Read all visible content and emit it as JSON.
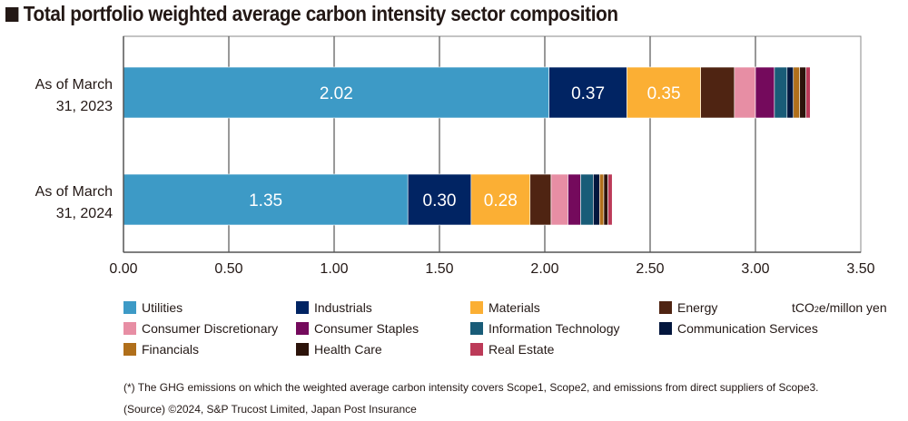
{
  "chart_data": {
    "type": "bar",
    "orientation": "horizontal",
    "stacked": true,
    "title": "Total portfolio weighted average carbon intensity sector composition",
    "xlabel": "",
    "ylabel": "",
    "unit": "tCO2e/millon yen",
    "xlim": [
      0,
      3.5
    ],
    "xticks": [
      0,
      0.5,
      1.0,
      1.5,
      2.0,
      2.5,
      3.0,
      3.5
    ],
    "xtick_labels": [
      "0.00",
      "0.50",
      "1.00",
      "1.50",
      "2.00",
      "2.50",
      "3.00",
      "3.50"
    ],
    "grid": "vertical",
    "legend_position": "bottom",
    "categories": [
      [
        "As of March",
        "31, 2023"
      ],
      [
        "As of March",
        "31, 2024"
      ]
    ],
    "series": [
      {
        "name": "Utilities",
        "color": "#3d9ac6",
        "values": [
          2.02,
          1.35
        ],
        "labels": [
          "2.02",
          "1.35"
        ]
      },
      {
        "name": "Industrials",
        "color": "#012463",
        "values": [
          0.37,
          0.3
        ],
        "labels": [
          "0.37",
          "0.30"
        ]
      },
      {
        "name": "Materials",
        "color": "#fbaf34",
        "values": [
          0.35,
          0.28
        ],
        "labels": [
          "0.35",
          "0.28"
        ]
      },
      {
        "name": "Energy",
        "color": "#4f2412",
        "values": [
          0.16,
          0.1
        ]
      },
      {
        "name": "Consumer Discretionary",
        "color": "#e78ea4",
        "values": [
          0.1,
          0.08
        ]
      },
      {
        "name": "Consumer Staples",
        "color": "#740a5c",
        "values": [
          0.09,
          0.06
        ]
      },
      {
        "name": "Information Technology",
        "color": "#195c78",
        "values": [
          0.06,
          0.06
        ]
      },
      {
        "name": "Communication Services",
        "color": "#03163d",
        "values": [
          0.03,
          0.03
        ]
      },
      {
        "name": "Financials",
        "color": "#b06f1b",
        "values": [
          0.03,
          0.02
        ]
      },
      {
        "name": "Health Care",
        "color": "#2c130a",
        "values": [
          0.03,
          0.02
        ]
      },
      {
        "name": "Real Estate",
        "color": "#bc3a58",
        "values": [
          0.02,
          0.02
        ]
      }
    ]
  },
  "header": {
    "title": "Total portfolio weighted average carbon intensity sector composition"
  },
  "legend": {
    "unit_prefix": "tCO",
    "unit_sub": "2",
    "unit_suffix": "e/millon yen"
  },
  "notes": {
    "footnote": "(*) The GHG emissions on which the weighted average carbon intensity covers Scope1, Scope2, and emissions from direct suppliers of Scope3.",
    "source": "(Source) ©2024, S&P Trucost Limited, Japan Post Insurance"
  }
}
